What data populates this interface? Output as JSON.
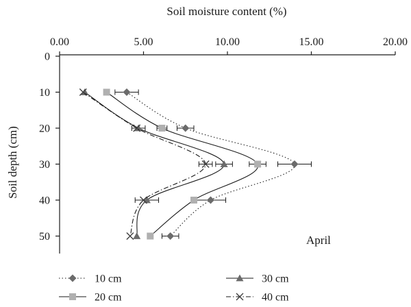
{
  "chart_data": {
    "type": "line",
    "title": "",
    "xlabel": "Soil moisture content (%)",
    "ylabel": "Soil depth (cm)",
    "x_axis_position": "top",
    "y_axis_inverted": true,
    "xlim": [
      0,
      20
    ],
    "ylim": [
      0,
      55
    ],
    "x_ticks": [
      "0.00",
      "5.00",
      "10.00",
      "15.00",
      "20.00"
    ],
    "x_tick_values": [
      0,
      5,
      10,
      15,
      20
    ],
    "y_ticks": [
      "0",
      "10",
      "20",
      "30",
      "40",
      "50"
    ],
    "y_tick_values": [
      0,
      10,
      20,
      30,
      40,
      50
    ],
    "grid": false,
    "legend_position": "bottom",
    "annotation": "April",
    "depths": [
      10,
      20,
      30,
      40,
      50
    ],
    "series": [
      {
        "name": "10 cm",
        "marker": "diamond",
        "line": "dotted",
        "color": "#6b6b6b",
        "values": [
          4.0,
          7.5,
          14.0,
          9.0,
          6.6
        ],
        "errors": [
          0.7,
          0.5,
          1.0,
          0.9,
          0.5
        ]
      },
      {
        "name": "20 cm",
        "marker": "square",
        "line": "solid",
        "color": "#b0b0b0",
        "values": [
          2.8,
          6.1,
          11.8,
          8.0,
          5.4
        ],
        "errors": [
          0,
          0.3,
          0.5,
          0,
          0
        ]
      },
      {
        "name": "30 cm",
        "marker": "triangle",
        "line": "solid",
        "color": "#6b6b6b",
        "values": [
          1.5,
          4.7,
          9.8,
          5.2,
          4.6
        ],
        "errors": [
          0,
          0.4,
          0.5,
          0.7,
          0
        ]
      },
      {
        "name": "40 cm",
        "marker": "x",
        "line": "dashdot",
        "color": "#404040",
        "values": [
          1.4,
          4.6,
          8.7,
          5.0,
          4.2
        ],
        "errors": [
          0,
          0,
          0.4,
          0,
          0
        ]
      }
    ]
  }
}
